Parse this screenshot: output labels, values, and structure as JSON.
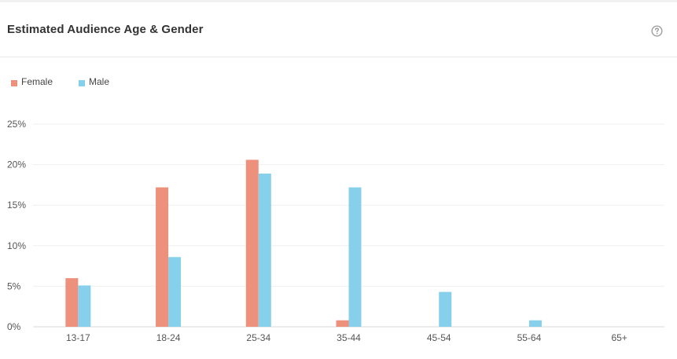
{
  "card": {
    "title": "Estimated Audience Age & Gender",
    "help_icon": "question-circle-icon"
  },
  "chart_data": {
    "type": "bar",
    "title": "Estimated Audience Age & Gender",
    "xlabel": "",
    "ylabel": "",
    "categories": [
      "13-17",
      "18-24",
      "25-34",
      "35-44",
      "45-54",
      "55-64",
      "65+"
    ],
    "series": [
      {
        "name": "Female",
        "color": "#ed917c",
        "values": [
          6.0,
          17.2,
          20.6,
          0.8,
          0,
          0,
          0
        ]
      },
      {
        "name": "Male",
        "color": "#87d0ec",
        "values": [
          5.1,
          8.6,
          18.9,
          17.2,
          4.3,
          0.8,
          0
        ]
      }
    ],
    "ylim": [
      0,
      25
    ],
    "yticks": [
      0,
      5,
      10,
      15,
      20,
      25
    ],
    "ytick_format": "%",
    "grid": true,
    "legend_position": "top-left"
  }
}
